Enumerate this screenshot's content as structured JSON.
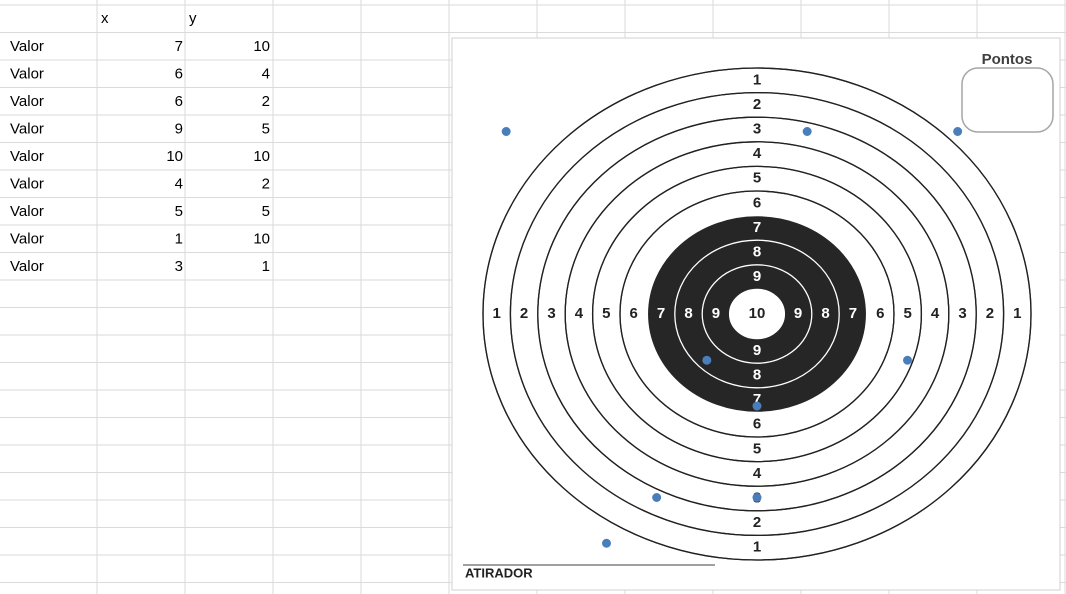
{
  "sheet": {
    "columns": [
      "x",
      "y"
    ],
    "row_labels": [
      "Valor",
      "Valor",
      "Valor",
      "Valor",
      "Valor",
      "Valor",
      "Valor",
      "Valor",
      "Valor"
    ]
  },
  "chart_data": {
    "type": "scatter",
    "x": [
      7,
      6,
      6,
      9,
      10,
      4,
      5,
      1,
      3
    ],
    "values": [
      10,
      4,
      2,
      5,
      10,
      2,
      5,
      10,
      1
    ],
    "color": "#4a7ebb",
    "xlim": [
      0,
      12
    ],
    "ylim": [
      0,
      12
    ]
  },
  "target": {
    "rings": [
      1,
      2,
      3,
      4,
      5,
      6,
      7,
      8,
      9,
      10
    ],
    "score_label": "Pontos",
    "shooter_label": "ATIRADOR"
  }
}
